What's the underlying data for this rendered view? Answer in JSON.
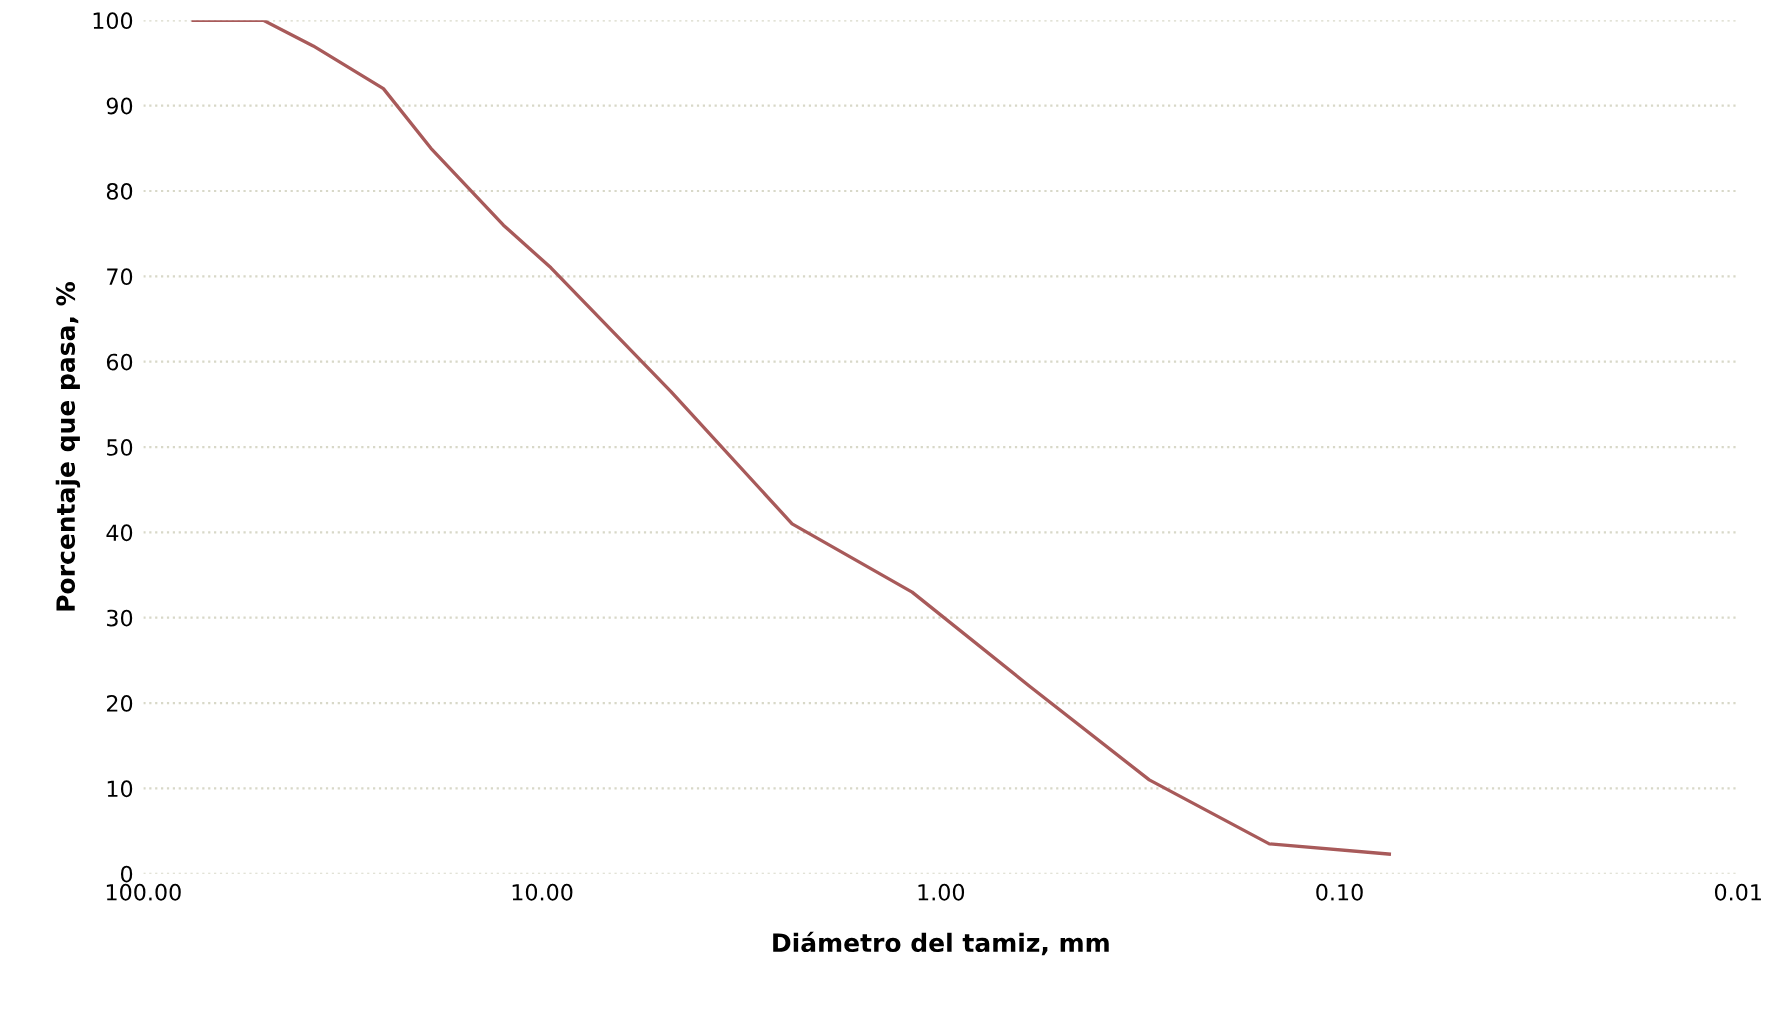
{
  "chart_data": {
    "type": "line",
    "xlabel": "Diámetro del tamiz, mm",
    "ylabel": "Porcentaje que pasa, %",
    "log": "x",
    "xlim": [
      100,
      0.01
    ],
    "xticks": [
      {
        "value": 100,
        "label": "100.00"
      },
      {
        "value": 10,
        "label": "10.00"
      },
      {
        "value": 1,
        "label": "1.00"
      },
      {
        "value": 0.1,
        "label": "0.10"
      },
      {
        "value": 0.01,
        "label": "0.01"
      }
    ],
    "ylim": [
      0,
      100
    ],
    "yticks": [
      0,
      10,
      20,
      30,
      40,
      50,
      60,
      70,
      80,
      90,
      100
    ],
    "grid": "y",
    "legend": false,
    "series": [
      {
        "color": "#a85a5a",
        "x": [
          75,
          50,
          37.5,
          25,
          19,
          12.5,
          9.5,
          4.75,
          2.36,
          1.18,
          0.6,
          0.3,
          0.15,
          0.075
        ],
        "values": [
          100,
          100,
          97,
          92,
          85,
          76,
          71,
          56.5,
          41,
          33,
          22,
          11,
          3.5,
          2.3
        ]
      }
    ]
  }
}
